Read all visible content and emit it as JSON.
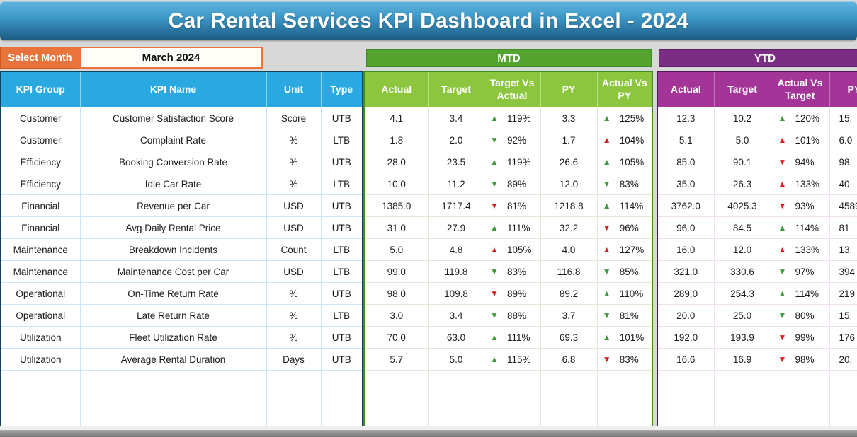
{
  "title": "Car Rental Services KPI Dashboard in Excel - 2024",
  "controls": {
    "select_month_label": "Select Month",
    "selected_month": "March 2024"
  },
  "sections": {
    "mtd": "MTD",
    "ytd": "YTD"
  },
  "glyphs": {
    "up": "▲",
    "down": "▼"
  },
  "colors": {
    "banner_blue_top": "#63b4de",
    "banner_blue_bottom": "#1b5a80",
    "orange": "#e8743b",
    "left_header_cyan": "#29a9e0",
    "mtd_dark_green": "#54a32f",
    "mtd_light_green": "#8cc63f",
    "ytd_dark_purple": "#7b2c83",
    "ytd_magenta": "#a23597",
    "arrow_green": "#3f9c3b",
    "arrow_red": "#de1e1e"
  },
  "table": {
    "left_headers": [
      "KPI Group",
      "KPI Name",
      "Unit",
      "Type"
    ],
    "mtd_headers": [
      "Actual",
      "Target",
      "Target Vs Actual",
      "PY",
      "Actual Vs PY"
    ],
    "ytd_headers": [
      "Actual",
      "Target",
      "Actual Vs Target",
      "PY"
    ],
    "empty_row_count": 3,
    "rows": [
      {
        "group": "Customer",
        "name": "Customer Satisfaction Score",
        "unit": "Score",
        "type": "UTB",
        "mtd": {
          "actual": "4.1",
          "target": "3.4",
          "tva": {
            "dir": "up",
            "color": "green",
            "pct": "119%"
          },
          "py": "3.3",
          "avp": {
            "dir": "up",
            "color": "green",
            "pct": "125%"
          }
        },
        "ytd": {
          "actual": "12.3",
          "target": "10.2",
          "avt": {
            "dir": "up",
            "color": "green",
            "pct": "120%"
          },
          "py": "15."
        }
      },
      {
        "group": "Customer",
        "name": "Complaint Rate",
        "unit": "%",
        "type": "LTB",
        "mtd": {
          "actual": "1.8",
          "target": "2.0",
          "tva": {
            "dir": "down",
            "color": "green",
            "pct": "92%"
          },
          "py": "1.7",
          "avp": {
            "dir": "up",
            "color": "red",
            "pct": "104%"
          }
        },
        "ytd": {
          "actual": "5.1",
          "target": "5.0",
          "avt": {
            "dir": "up",
            "color": "red",
            "pct": "101%"
          },
          "py": "6.0"
        }
      },
      {
        "group": "Efficiency",
        "name": "Booking Conversion Rate",
        "unit": "%",
        "type": "UTB",
        "mtd": {
          "actual": "28.0",
          "target": "23.5",
          "tva": {
            "dir": "up",
            "color": "green",
            "pct": "119%"
          },
          "py": "26.6",
          "avp": {
            "dir": "up",
            "color": "green",
            "pct": "105%"
          }
        },
        "ytd": {
          "actual": "85.0",
          "target": "90.1",
          "avt": {
            "dir": "down",
            "color": "red",
            "pct": "94%"
          },
          "py": "98."
        }
      },
      {
        "group": "Efficiency",
        "name": "Idle Car Rate",
        "unit": "%",
        "type": "LTB",
        "mtd": {
          "actual": "10.0",
          "target": "11.2",
          "tva": {
            "dir": "down",
            "color": "green",
            "pct": "89%"
          },
          "py": "12.0",
          "avp": {
            "dir": "down",
            "color": "green",
            "pct": "83%"
          }
        },
        "ytd": {
          "actual": "35.0",
          "target": "26.3",
          "avt": {
            "dir": "up",
            "color": "red",
            "pct": "133%"
          },
          "py": "40."
        }
      },
      {
        "group": "Financial",
        "name": "Revenue per Car",
        "unit": "USD",
        "type": "UTB",
        "mtd": {
          "actual": "1385.0",
          "target": "1717.4",
          "tva": {
            "dir": "down",
            "color": "red",
            "pct": "81%"
          },
          "py": "1218.8",
          "avp": {
            "dir": "up",
            "color": "green",
            "pct": "114%"
          }
        },
        "ytd": {
          "actual": "3762.0",
          "target": "4025.3",
          "avt": {
            "dir": "down",
            "color": "red",
            "pct": "93%"
          },
          "py": "4589"
        }
      },
      {
        "group": "Financial",
        "name": "Avg Daily Rental Price",
        "unit": "USD",
        "type": "UTB",
        "mtd": {
          "actual": "31.0",
          "target": "27.9",
          "tva": {
            "dir": "up",
            "color": "green",
            "pct": "111%"
          },
          "py": "32.2",
          "avp": {
            "dir": "down",
            "color": "red",
            "pct": "96%"
          }
        },
        "ytd": {
          "actual": "96.0",
          "target": "84.5",
          "avt": {
            "dir": "up",
            "color": "green",
            "pct": "114%"
          },
          "py": "81."
        }
      },
      {
        "group": "Maintenance",
        "name": "Breakdown Incidents",
        "unit": "Count",
        "type": "LTB",
        "mtd": {
          "actual": "5.0",
          "target": "4.8",
          "tva": {
            "dir": "up",
            "color": "red",
            "pct": "105%"
          },
          "py": "4.0",
          "avp": {
            "dir": "up",
            "color": "red",
            "pct": "127%"
          }
        },
        "ytd": {
          "actual": "16.0",
          "target": "12.0",
          "avt": {
            "dir": "up",
            "color": "red",
            "pct": "133%"
          },
          "py": "13."
        }
      },
      {
        "group": "Maintenance",
        "name": "Maintenance Cost per Car",
        "unit": "USD",
        "type": "LTB",
        "mtd": {
          "actual": "99.0",
          "target": "119.8",
          "tva": {
            "dir": "down",
            "color": "green",
            "pct": "83%"
          },
          "py": "116.8",
          "avp": {
            "dir": "down",
            "color": "green",
            "pct": "85%"
          }
        },
        "ytd": {
          "actual": "321.0",
          "target": "330.6",
          "avt": {
            "dir": "down",
            "color": "green",
            "pct": "97%"
          },
          "py": "394"
        }
      },
      {
        "group": "Operational",
        "name": "On-Time Return Rate",
        "unit": "%",
        "type": "UTB",
        "mtd": {
          "actual": "98.0",
          "target": "109.8",
          "tva": {
            "dir": "down",
            "color": "red",
            "pct": "89%"
          },
          "py": "89.2",
          "avp": {
            "dir": "up",
            "color": "green",
            "pct": "110%"
          }
        },
        "ytd": {
          "actual": "289.0",
          "target": "254.3",
          "avt": {
            "dir": "up",
            "color": "green",
            "pct": "114%"
          },
          "py": "219"
        }
      },
      {
        "group": "Operational",
        "name": "Late Return Rate",
        "unit": "%",
        "type": "LTB",
        "mtd": {
          "actual": "3.0",
          "target": "3.4",
          "tva": {
            "dir": "down",
            "color": "green",
            "pct": "88%"
          },
          "py": "3.7",
          "avp": {
            "dir": "down",
            "color": "green",
            "pct": "81%"
          }
        },
        "ytd": {
          "actual": "20.0",
          "target": "25.0",
          "avt": {
            "dir": "down",
            "color": "green",
            "pct": "80%"
          },
          "py": "15."
        }
      },
      {
        "group": "Utilization",
        "name": "Fleet Utilization Rate",
        "unit": "%",
        "type": "UTB",
        "mtd": {
          "actual": "70.0",
          "target": "63.0",
          "tva": {
            "dir": "up",
            "color": "green",
            "pct": "111%"
          },
          "py": "69.3",
          "avp": {
            "dir": "up",
            "color": "green",
            "pct": "101%"
          }
        },
        "ytd": {
          "actual": "192.0",
          "target": "193.9",
          "avt": {
            "dir": "down",
            "color": "red",
            "pct": "99%"
          },
          "py": "176"
        }
      },
      {
        "group": "Utilization",
        "name": "Average Rental Duration",
        "unit": "Days",
        "type": "UTB",
        "mtd": {
          "actual": "5.7",
          "target": "5.0",
          "tva": {
            "dir": "up",
            "color": "green",
            "pct": "115%"
          },
          "py": "6.8",
          "avp": {
            "dir": "down",
            "color": "red",
            "pct": "83%"
          }
        },
        "ytd": {
          "actual": "16.6",
          "target": "16.9",
          "avt": {
            "dir": "down",
            "color": "red",
            "pct": "98%"
          },
          "py": "20."
        }
      }
    ]
  }
}
